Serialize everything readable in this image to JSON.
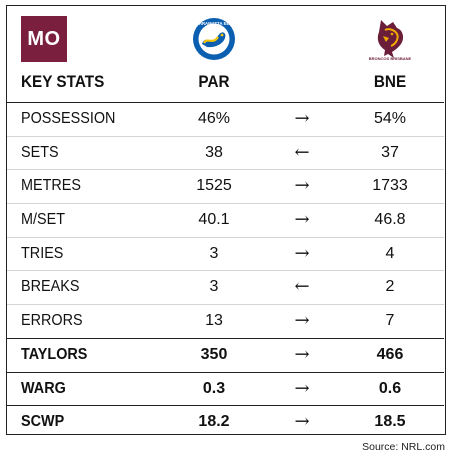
{
  "brand": {
    "logo_text": "MO",
    "brand_color": "#7a1f3d"
  },
  "header": {
    "title": "KEY STATS",
    "home_team": "PAR",
    "away_team": "BNE"
  },
  "logos": {
    "home": {
      "icon": "parramatta-eels-logo-icon",
      "text": "PARRAMATTA EELS",
      "colors": [
        "#0a5fb0",
        "#f5c400"
      ]
    },
    "away": {
      "icon": "brisbane-broncos-logo-icon",
      "text": "BRONCOS BRISBANE",
      "colors": [
        "#6b1e3a",
        "#f2a900"
      ]
    }
  },
  "stats": [
    {
      "label": "POSSESSION",
      "home": "46%",
      "arrow": "→",
      "away": "54%",
      "bold": false
    },
    {
      "label": "SETS",
      "home": "38",
      "arrow": "←",
      "away": "37",
      "bold": false
    },
    {
      "label": "METRES",
      "home": "1525",
      "arrow": "→",
      "away": "1733",
      "bold": false
    },
    {
      "label": "M/SET",
      "home": "40.1",
      "arrow": "→",
      "away": "46.8",
      "bold": false
    },
    {
      "label": "TRIES",
      "home": "3",
      "arrow": "→",
      "away": "4",
      "bold": false
    },
    {
      "label": "BREAKS",
      "home": "3",
      "arrow": "←",
      "away": "2",
      "bold": false
    },
    {
      "label": "ERRORS",
      "home": "13",
      "arrow": "→",
      "away": "7",
      "bold": false
    },
    {
      "label": "TAYLORS",
      "home": "350",
      "arrow": "→",
      "away": "466",
      "bold": true
    },
    {
      "label": "WARG",
      "home": "0.3",
      "arrow": "→",
      "away": "0.6",
      "bold": true
    },
    {
      "label": "SCWP",
      "home": "18.2",
      "arrow": "→",
      "away": "18.5",
      "bold": true
    }
  ],
  "source": "Source: NRL.com"
}
